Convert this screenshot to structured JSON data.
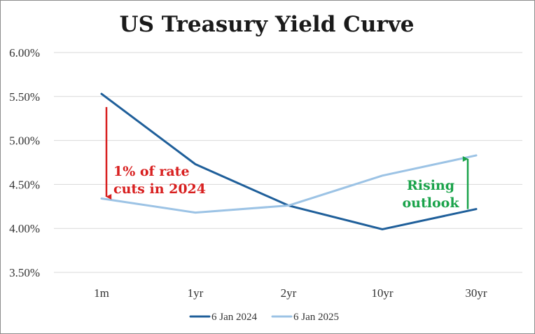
{
  "chart_data": {
    "type": "line",
    "title": "US Treasury Yield Curve",
    "xlabel": "",
    "ylabel": "",
    "categories": [
      "1m",
      "1yr",
      "2yr",
      "10yr",
      "30yr"
    ],
    "y_ticks": [
      "3.50%",
      "4.00%",
      "4.50%",
      "5.00%",
      "5.50%",
      "6.00%"
    ],
    "ylim": [
      3.5,
      6.0
    ],
    "grid": true,
    "legend_position": "bottom",
    "series": [
      {
        "name": "6 Jan 2024",
        "color": "#1f5f9a",
        "values": [
          5.53,
          4.73,
          4.26,
          3.99,
          4.22
        ]
      },
      {
        "name": "6 Jan 2025",
        "color": "#9cc3e5",
        "values": [
          4.34,
          4.18,
          4.26,
          4.6,
          4.83
        ]
      }
    ],
    "annotations": [
      {
        "lines": [
          "1% of rate",
          "cuts in 2024"
        ],
        "color": "#d81f1f",
        "arrow_category": "1m",
        "arrow_from": 5.38,
        "arrow_to": 4.36
      },
      {
        "lines": [
          "Rising",
          "outlook"
        ],
        "color": "#1aa34a",
        "arrow_category": "30yr",
        "arrow_from": 4.22,
        "arrow_to": 4.79
      }
    ]
  }
}
